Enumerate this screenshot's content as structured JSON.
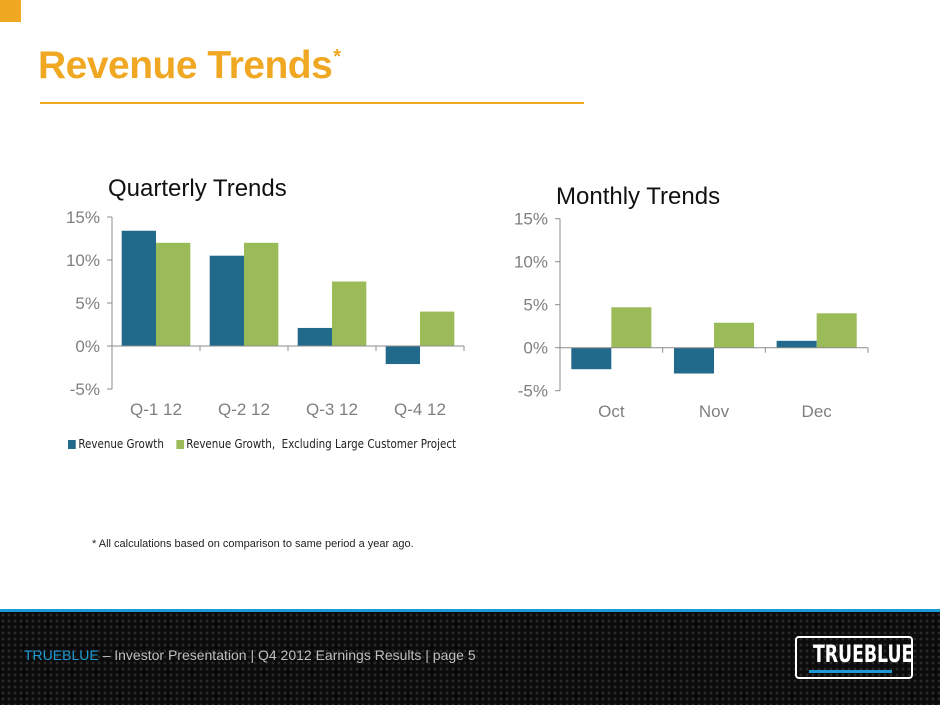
{
  "slide": {
    "title": "Revenue Trends",
    "title_marker": "*",
    "footnote": "* All calculations based on comparison to same period a year ago.",
    "footer": {
      "brand": "TRUEBLUE",
      "text": " – Investor Presentation | Q4 2012 Earnings Results | page 5"
    },
    "logo": {
      "text": "TRUEBLUE",
      "icon": "trueblue-logo"
    },
    "colors": {
      "accent": "#f0a823",
      "series_revenue_growth": "#226a8c",
      "series_excluding": "#9bbb59",
      "footer_blue": "#1b9ad6"
    }
  },
  "chart_data": [
    {
      "type": "bar",
      "title": "Quarterly Trends",
      "xlabel": "",
      "ylabel": "",
      "categories": [
        "Q-1 12",
        "Q-2 12",
        "Q-3 12",
        "Q-4 12"
      ],
      "series": [
        {
          "name": "Revenue Growth",
          "values": [
            13.4,
            10.5,
            2.1,
            -2.1
          ]
        },
        {
          "name": "Revenue Growth,  Excluding Large Customer Project",
          "values": [
            12.0,
            12.0,
            7.5,
            4.0
          ]
        }
      ],
      "ylim": [
        -5,
        15
      ],
      "yticks": [
        -5,
        0,
        5,
        10,
        15
      ],
      "ytick_labels": [
        "-5%",
        "0%",
        "5%",
        "10%",
        "15%"
      ],
      "grid": false,
      "legend": "bottom"
    },
    {
      "type": "bar",
      "title": "Monthly  Trends",
      "xlabel": "",
      "ylabel": "",
      "categories": [
        "Oct",
        "Nov",
        "Dec"
      ],
      "series": [
        {
          "name": "Revenue Growth",
          "values": [
            -2.5,
            -3.0,
            0.8
          ]
        },
        {
          "name": "Revenue Growth,  Excluding Large Customer Project",
          "values": [
            4.7,
            2.9,
            4.0
          ]
        }
      ],
      "ylim": [
        -5,
        15
      ],
      "yticks": [
        -5,
        0,
        5,
        10,
        15
      ],
      "ytick_labels": [
        "-5%",
        "0%",
        "5%",
        "10%",
        "15%"
      ],
      "grid": false,
      "legend": "none"
    }
  ]
}
